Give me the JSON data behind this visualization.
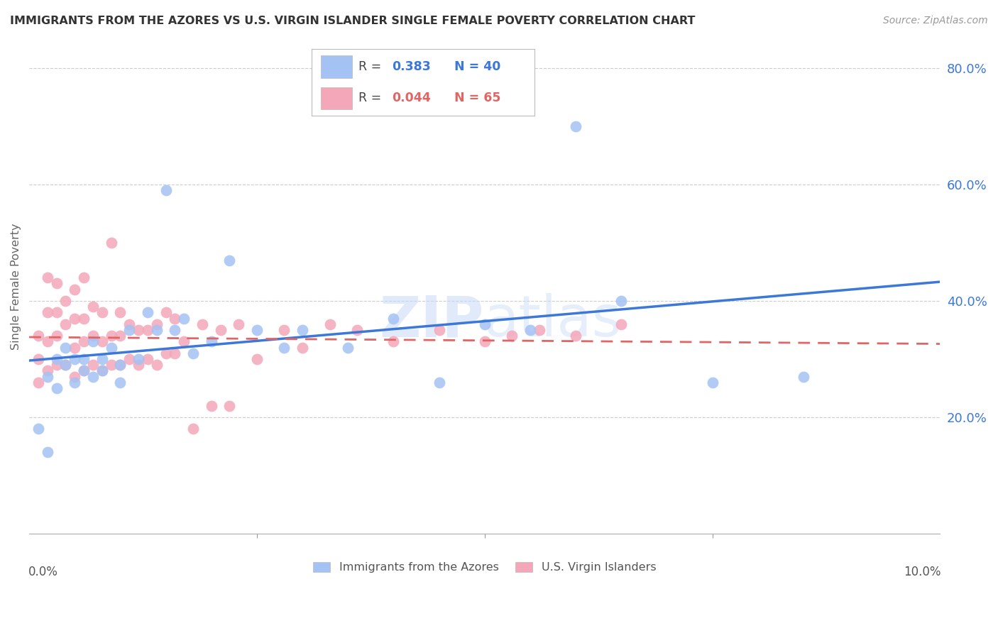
{
  "title": "IMMIGRANTS FROM THE AZORES VS U.S. VIRGIN ISLANDER SINGLE FEMALE POVERTY CORRELATION CHART",
  "source": "Source: ZipAtlas.com",
  "ylabel": "Single Female Poverty",
  "xlim": [
    0.0,
    0.1
  ],
  "ylim": [
    0.0,
    0.85
  ],
  "yticks": [
    0.2,
    0.4,
    0.6,
    0.8
  ],
  "ytick_labels": [
    "20.0%",
    "40.0%",
    "60.0%",
    "80.0%"
  ],
  "watermark": "ZIPatlas",
  "color_blue": "#a4c2f4",
  "color_pink": "#f4a7b9",
  "color_blue_line": "#3c78d8",
  "color_pink_line": "#e06666",
  "legend_blue_text_r": "R = ",
  "legend_blue_r_val": "0.383",
  "legend_blue_n": "N = 40",
  "legend_pink_text_r": "R = ",
  "legend_pink_r_val": "0.044",
  "legend_pink_n": "N = 65",
  "azores_x": [
    0.001,
    0.002,
    0.002,
    0.003,
    0.003,
    0.004,
    0.004,
    0.005,
    0.005,
    0.006,
    0.006,
    0.007,
    0.007,
    0.008,
    0.008,
    0.009,
    0.01,
    0.01,
    0.011,
    0.012,
    0.013,
    0.014,
    0.015,
    0.016,
    0.017,
    0.018,
    0.02,
    0.022,
    0.025,
    0.028,
    0.03,
    0.035,
    0.04,
    0.045,
    0.05,
    0.055,
    0.06,
    0.065,
    0.075,
    0.085
  ],
  "azores_y": [
    0.18,
    0.14,
    0.27,
    0.25,
    0.3,
    0.29,
    0.32,
    0.26,
    0.3,
    0.28,
    0.3,
    0.27,
    0.33,
    0.28,
    0.3,
    0.32,
    0.29,
    0.26,
    0.35,
    0.3,
    0.38,
    0.35,
    0.59,
    0.35,
    0.37,
    0.31,
    0.33,
    0.47,
    0.35,
    0.32,
    0.35,
    0.32,
    0.37,
    0.26,
    0.36,
    0.35,
    0.7,
    0.4,
    0.26,
    0.27
  ],
  "virgin_x": [
    0.001,
    0.001,
    0.001,
    0.002,
    0.002,
    0.002,
    0.002,
    0.003,
    0.003,
    0.003,
    0.003,
    0.004,
    0.004,
    0.004,
    0.005,
    0.005,
    0.005,
    0.005,
    0.006,
    0.006,
    0.006,
    0.006,
    0.007,
    0.007,
    0.007,
    0.008,
    0.008,
    0.008,
    0.009,
    0.009,
    0.009,
    0.01,
    0.01,
    0.01,
    0.011,
    0.011,
    0.012,
    0.012,
    0.013,
    0.013,
    0.014,
    0.014,
    0.015,
    0.015,
    0.016,
    0.016,
    0.017,
    0.018,
    0.019,
    0.02,
    0.021,
    0.022,
    0.023,
    0.025,
    0.028,
    0.03,
    0.033,
    0.036,
    0.04,
    0.045,
    0.05,
    0.053,
    0.056,
    0.06,
    0.065
  ],
  "virgin_y": [
    0.3,
    0.26,
    0.34,
    0.28,
    0.33,
    0.38,
    0.44,
    0.29,
    0.34,
    0.38,
    0.43,
    0.29,
    0.36,
    0.4,
    0.27,
    0.32,
    0.37,
    0.42,
    0.28,
    0.33,
    0.37,
    0.44,
    0.29,
    0.34,
    0.39,
    0.28,
    0.33,
    0.38,
    0.29,
    0.34,
    0.5,
    0.29,
    0.34,
    0.38,
    0.3,
    0.36,
    0.29,
    0.35,
    0.3,
    0.35,
    0.29,
    0.36,
    0.31,
    0.38,
    0.31,
    0.37,
    0.33,
    0.18,
    0.36,
    0.22,
    0.35,
    0.22,
    0.36,
    0.3,
    0.35,
    0.32,
    0.36,
    0.35,
    0.33,
    0.35,
    0.33,
    0.34,
    0.35,
    0.34,
    0.36
  ]
}
